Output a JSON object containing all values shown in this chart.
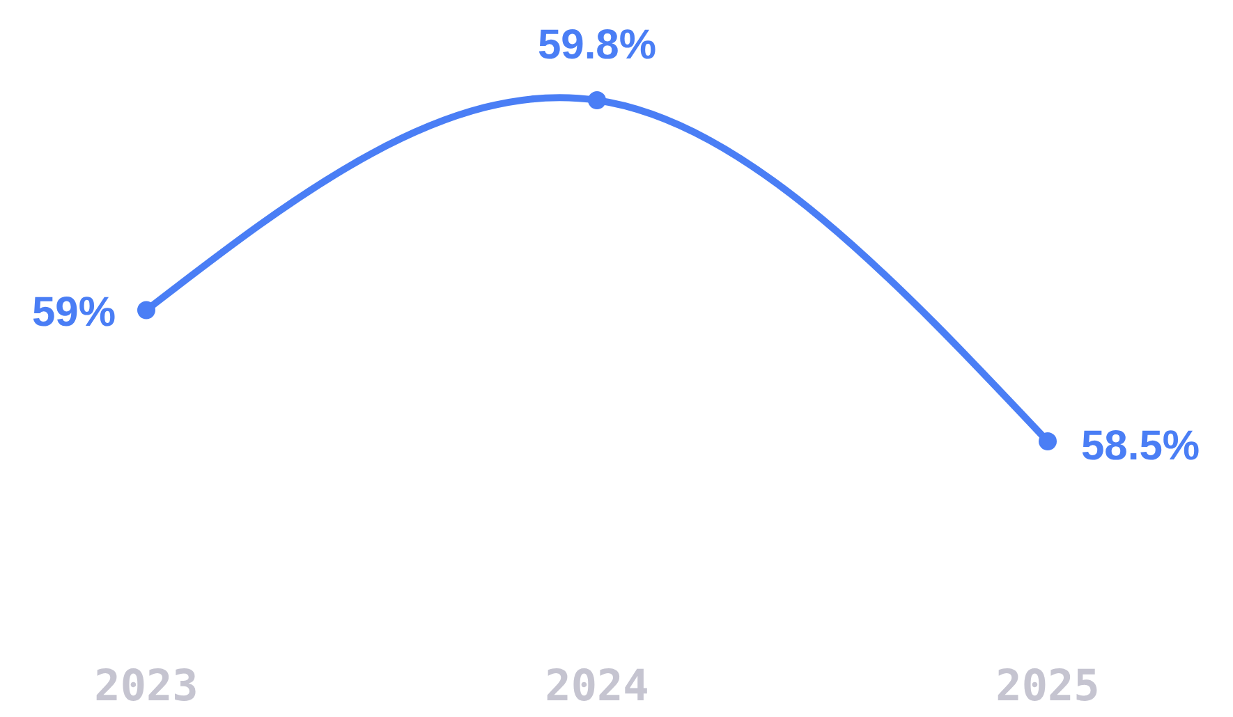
{
  "chart_data": {
    "type": "line",
    "categories": [
      "2023",
      "2024",
      "2025"
    ],
    "series": [
      {
        "color": "#4a7ef5",
        "values": [
          59,
          59.8,
          58.5
        ],
        "value_labels": [
          "59%",
          "59.8%",
          "58.5%"
        ]
      }
    ],
    "marker": "circle",
    "grid": false,
    "legend": false,
    "tick_labels": "x"
  }
}
